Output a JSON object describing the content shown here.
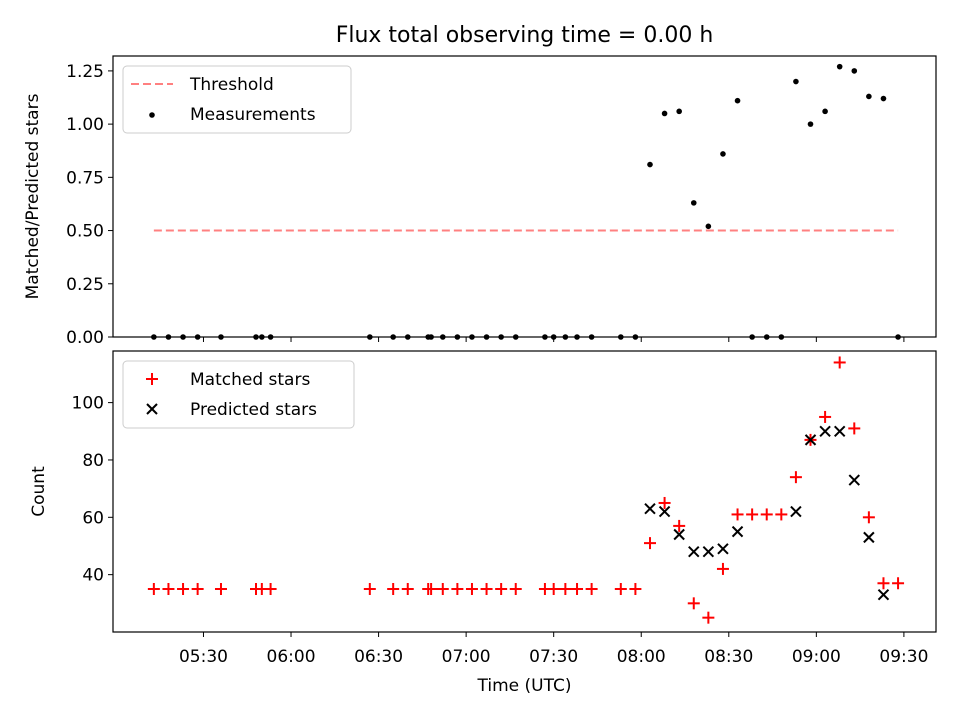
{
  "figure": {
    "title": "Flux total observing time = 0.00 h",
    "xlabel": "Time (UTC)"
  },
  "chart_data": [
    {
      "type": "scatter",
      "ylabel": "Matched/Predicted stars",
      "xlim": [
        "04:59",
        "09:41"
      ],
      "ylim": [
        0,
        1.32
      ],
      "yticks": [
        "0.00",
        "0.25",
        "0.50",
        "0.75",
        "1.00",
        "1.25"
      ],
      "legend": {
        "position": "top-left",
        "entries": [
          "Threshold",
          "Measurements"
        ]
      },
      "threshold": {
        "name": "Threshold",
        "value": 0.5,
        "x_start": "05:13",
        "x_end": "09:28",
        "color": "#ff8080",
        "style": "dashed"
      },
      "series": [
        {
          "name": "Measurements",
          "color": "#000000",
          "points": [
            [
              "05:13",
              0
            ],
            [
              "05:18",
              0
            ],
            [
              "05:23",
              0
            ],
            [
              "05:28",
              0
            ],
            [
              "05:36",
              0
            ],
            [
              "05:48",
              0
            ],
            [
              "05:50",
              0
            ],
            [
              "05:53",
              0
            ],
            [
              "06:27",
              0
            ],
            [
              "06:35",
              0
            ],
            [
              "06:40",
              0
            ],
            [
              "06:47",
              0
            ],
            [
              "06:48",
              0
            ],
            [
              "06:52",
              0
            ],
            [
              "06:57",
              0
            ],
            [
              "07:02",
              0
            ],
            [
              "07:07",
              0
            ],
            [
              "07:12",
              0
            ],
            [
              "07:17",
              0
            ],
            [
              "07:27",
              0
            ],
            [
              "07:30",
              0
            ],
            [
              "07:34",
              0
            ],
            [
              "07:38",
              0
            ],
            [
              "07:43",
              0
            ],
            [
              "07:53",
              0
            ],
            [
              "07:58",
              0
            ],
            [
              "08:03",
              0.81
            ],
            [
              "08:08",
              1.05
            ],
            [
              "08:13",
              1.06
            ],
            [
              "08:18",
              0.63
            ],
            [
              "08:23",
              0.52
            ],
            [
              "08:28",
              0.86
            ],
            [
              "08:33",
              1.11
            ],
            [
              "08:38",
              0
            ],
            [
              "08:43",
              0
            ],
            [
              "08:48",
              0
            ],
            [
              "08:53",
              1.2
            ],
            [
              "08:58",
              1.0
            ],
            [
              "09:03",
              1.06
            ],
            [
              "09:08",
              1.27
            ],
            [
              "09:13",
              1.25
            ],
            [
              "09:18",
              1.13
            ],
            [
              "09:23",
              1.12
            ],
            [
              "09:28",
              0
            ]
          ]
        }
      ]
    },
    {
      "type": "scatter",
      "ylabel": "Count",
      "xlim": [
        "04:59",
        "09:41"
      ],
      "ylim": [
        20,
        118
      ],
      "yticks": [
        "40",
        "60",
        "80",
        "100"
      ],
      "xticks": [
        "05:30",
        "06:00",
        "06:30",
        "07:00",
        "07:30",
        "08:00",
        "08:30",
        "09:00",
        "09:30"
      ],
      "legend": {
        "position": "top-left",
        "entries": [
          "Matched stars",
          "Predicted stars"
        ]
      },
      "series": [
        {
          "name": "Matched stars",
          "marker": "plus",
          "color": "#ff0000",
          "points": [
            [
              "05:13",
              35
            ],
            [
              "05:18",
              35
            ],
            [
              "05:23",
              35
            ],
            [
              "05:28",
              35
            ],
            [
              "05:36",
              35
            ],
            [
              "05:48",
              35
            ],
            [
              "05:50",
              35
            ],
            [
              "05:53",
              35
            ],
            [
              "06:27",
              35
            ],
            [
              "06:35",
              35
            ],
            [
              "06:40",
              35
            ],
            [
              "06:47",
              35
            ],
            [
              "06:48",
              35
            ],
            [
              "06:52",
              35
            ],
            [
              "06:57",
              35
            ],
            [
              "07:02",
              35
            ],
            [
              "07:07",
              35
            ],
            [
              "07:12",
              35
            ],
            [
              "07:17",
              35
            ],
            [
              "07:27",
              35
            ],
            [
              "07:30",
              35
            ],
            [
              "07:34",
              35
            ],
            [
              "07:38",
              35
            ],
            [
              "07:43",
              35
            ],
            [
              "07:53",
              35
            ],
            [
              "07:58",
              35
            ],
            [
              "08:03",
              51
            ],
            [
              "08:08",
              65
            ],
            [
              "08:13",
              57
            ],
            [
              "08:18",
              30
            ],
            [
              "08:23",
              25
            ],
            [
              "08:28",
              42
            ],
            [
              "08:33",
              61
            ],
            [
              "08:38",
              61
            ],
            [
              "08:43",
              61
            ],
            [
              "08:48",
              61
            ],
            [
              "08:53",
              74
            ],
            [
              "08:58",
              87
            ],
            [
              "09:03",
              95
            ],
            [
              "09:08",
              114
            ],
            [
              "09:13",
              91
            ],
            [
              "09:18",
              60
            ],
            [
              "09:23",
              37
            ],
            [
              "09:28",
              37
            ]
          ]
        },
        {
          "name": "Predicted stars",
          "marker": "x",
          "color": "#000000",
          "points": [
            [
              "08:03",
              63
            ],
            [
              "08:08",
              62
            ],
            [
              "08:13",
              54
            ],
            [
              "08:18",
              48
            ],
            [
              "08:23",
              48
            ],
            [
              "08:28",
              49
            ],
            [
              "08:33",
              55
            ],
            [
              "08:53",
              62
            ],
            [
              "08:58",
              87
            ],
            [
              "09:03",
              90
            ],
            [
              "09:08",
              90
            ],
            [
              "09:13",
              73
            ],
            [
              "09:18",
              53
            ],
            [
              "09:23",
              33
            ]
          ]
        }
      ]
    }
  ]
}
